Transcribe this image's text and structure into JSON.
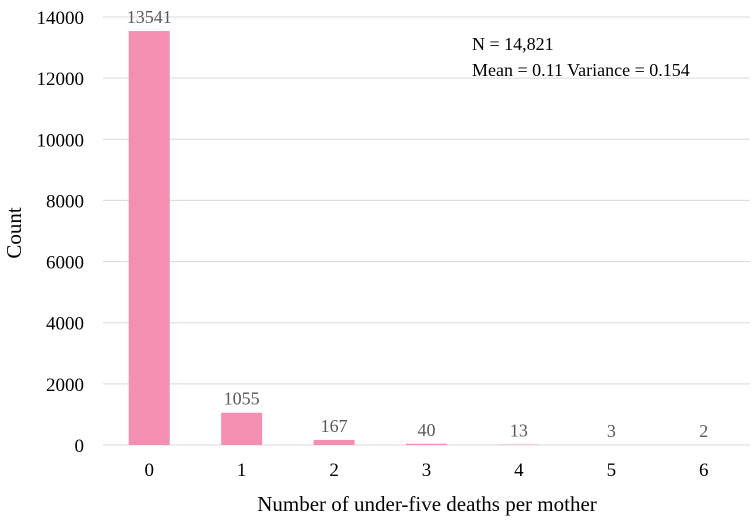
{
  "chart_data": {
    "type": "bar",
    "categories": [
      "0",
      "1",
      "2",
      "3",
      "4",
      "5",
      "6"
    ],
    "values": [
      13541,
      1055,
      167,
      40,
      13,
      3,
      2
    ],
    "data_labels": [
      "13541",
      "1055",
      "167",
      "40",
      "13",
      "3",
      "2"
    ],
    "xlabel": "Number of under-five deaths per mother",
    "ylabel": "Count",
    "ylim": [
      0,
      14000
    ],
    "yticks": [
      0,
      2000,
      4000,
      6000,
      8000,
      10000,
      12000,
      14000
    ],
    "ytick_labels": [
      "0",
      "2000",
      "4000",
      "6000",
      "8000",
      "10000",
      "12000",
      "14000"
    ],
    "grid": true,
    "bar_color": "#f48fb1",
    "grid_color": "#d9d9d9",
    "data_label_color": "#595959",
    "annotations": [
      "N = 14,821",
      "Mean = 0.11 Variance = 0.154"
    ]
  }
}
